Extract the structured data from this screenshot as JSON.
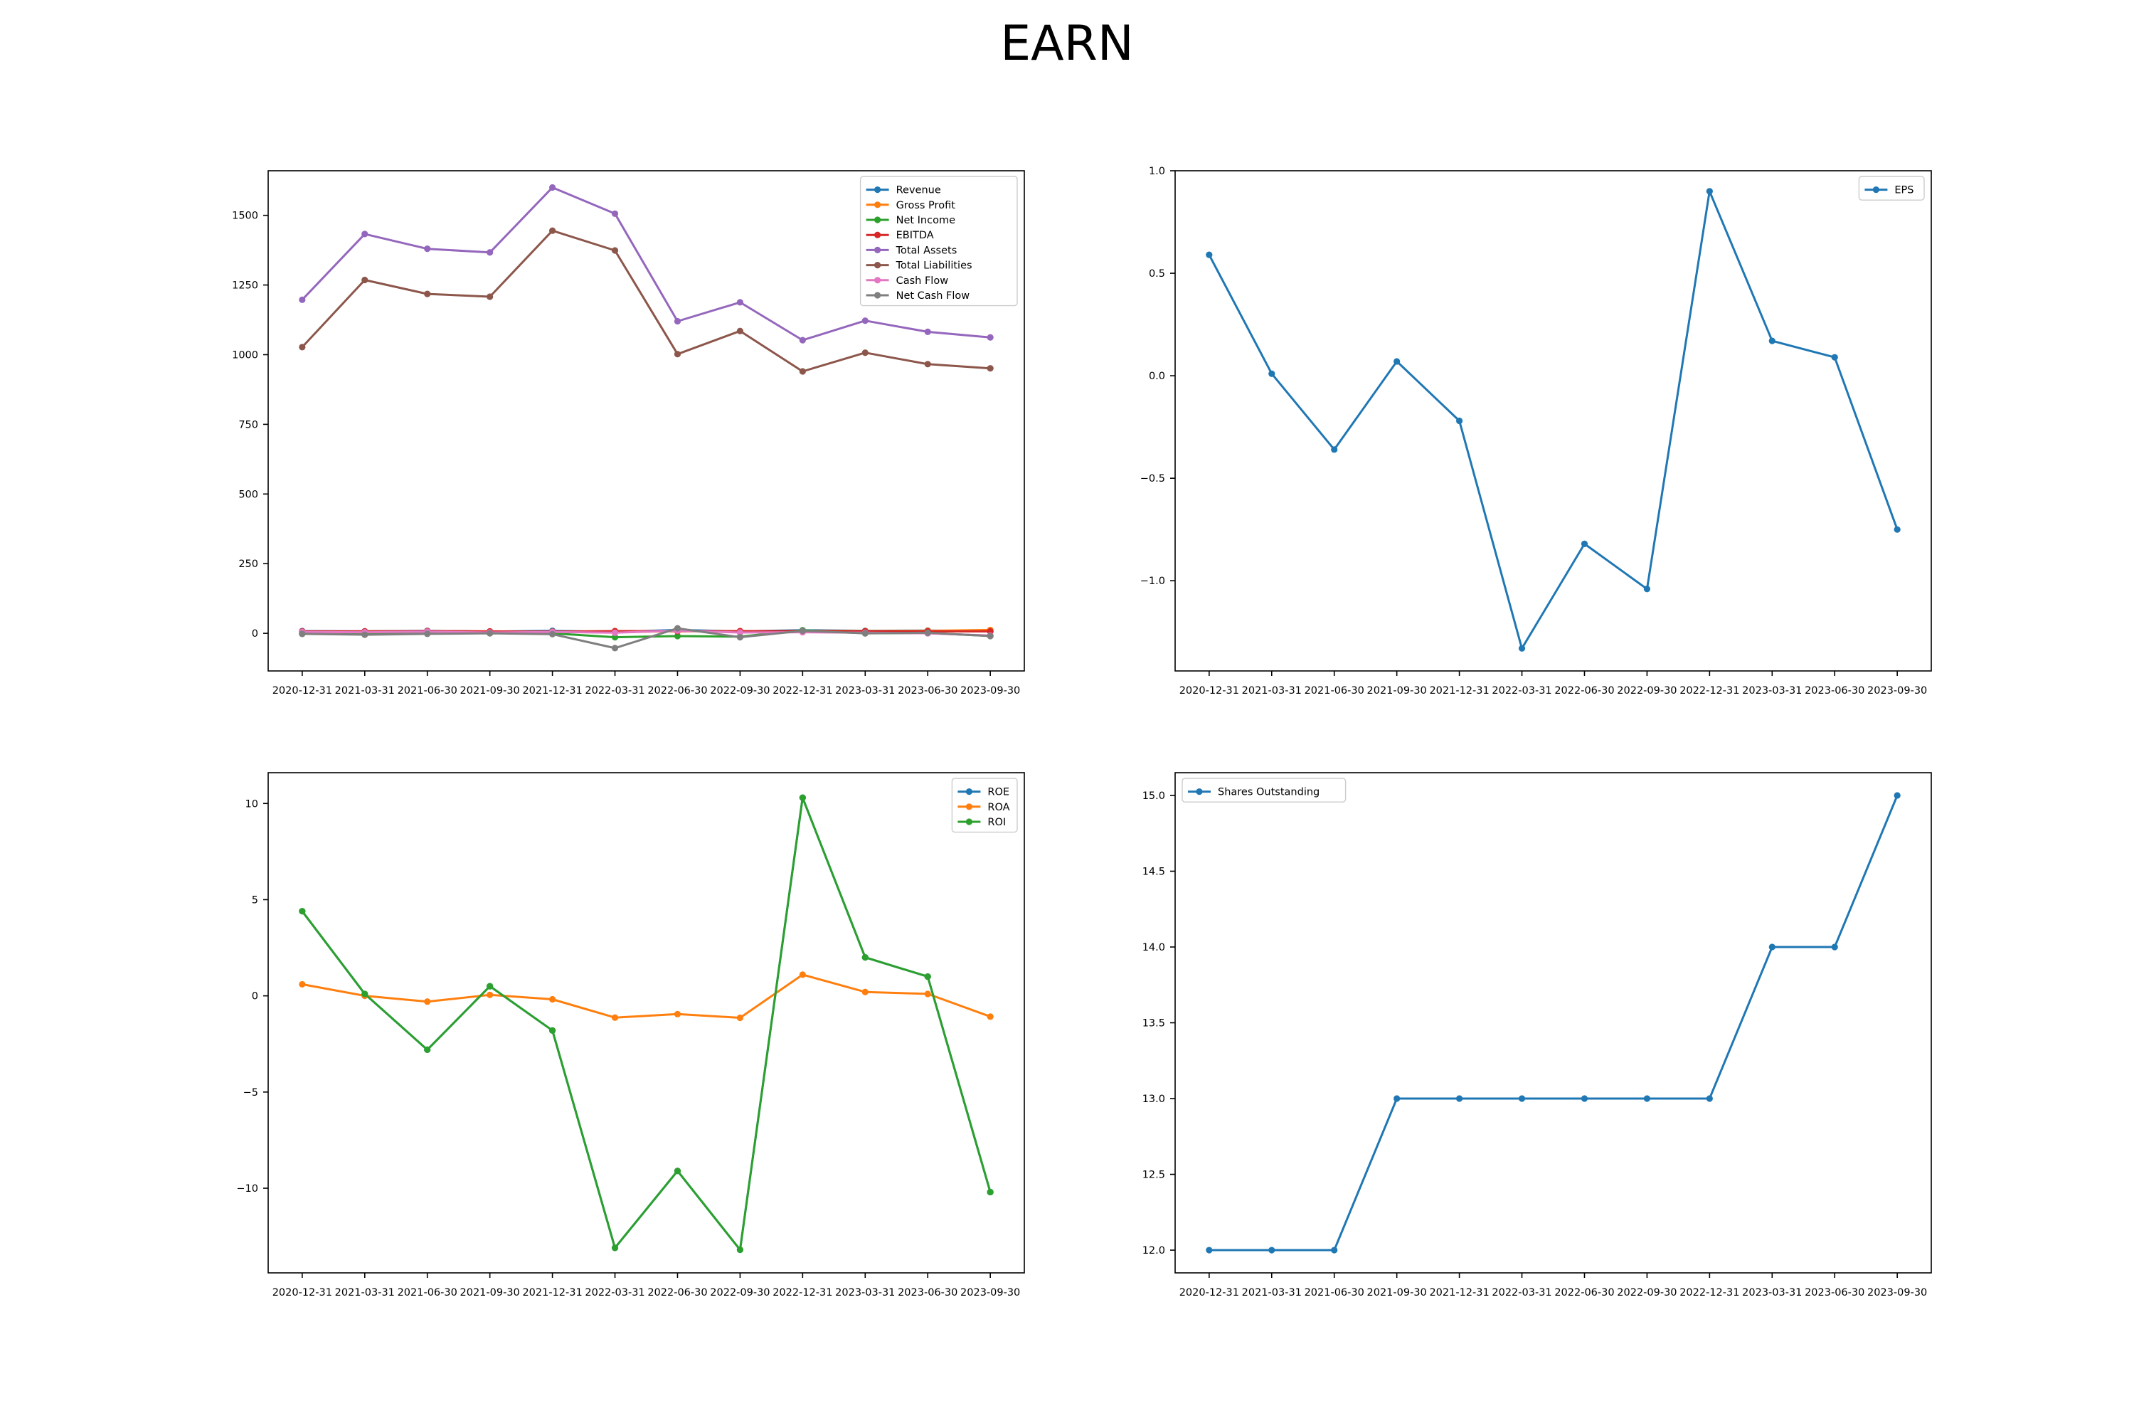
{
  "suptitle": "EARN",
  "chart_data": [
    {
      "type": "line",
      "x": [
        "2020-12-31",
        "2021-03-31",
        "2021-06-30",
        "2021-09-30",
        "2021-12-31",
        "2022-03-31",
        "2022-06-30",
        "2022-09-30",
        "2022-12-31",
        "2023-03-31",
        "2023-06-30",
        "2023-09-30"
      ],
      "ylim": [
        -135,
        1660
      ],
      "yticks": [
        0,
        250,
        500,
        750,
        1000,
        1250,
        1500
      ],
      "yticklabels": [
        "0",
        "250",
        "500",
        "750",
        "1000",
        "1250",
        "1500"
      ],
      "legend_loc": "upper right",
      "series": [
        {
          "name": "Revenue",
          "color": "#1f77b4",
          "values": [
            8,
            7,
            9,
            6,
            9,
            5,
            12,
            7,
            11,
            9,
            10,
            8
          ]
        },
        {
          "name": "Gross Profit",
          "color": "#ff7f0e",
          "values": [
            6,
            5,
            7,
            5,
            6,
            4,
            8,
            6,
            9,
            8,
            9,
            12
          ]
        },
        {
          "name": "Net Income",
          "color": "#2ca02c",
          "values": [
            -2,
            -3,
            0,
            1,
            0,
            -14,
            -10,
            -12,
            11,
            0,
            1,
            -9
          ]
        },
        {
          "name": "EBITDA",
          "color": "#d62728",
          "values": [
            7,
            7,
            8,
            7,
            6,
            8,
            8,
            8,
            8,
            7,
            7,
            7
          ]
        },
        {
          "name": "Total Assets",
          "color": "#9467bd",
          "values": [
            1197,
            1433,
            1380,
            1367,
            1600,
            1506,
            1120,
            1188,
            1052,
            1122,
            1082,
            1062
          ]
        },
        {
          "name": "Total Liabilities",
          "color": "#8c564b",
          "values": [
            1027,
            1268,
            1218,
            1208,
            1445,
            1374,
            1002,
            1085,
            940,
            1007,
            966,
            951
          ]
        },
        {
          "name": "Cash Flow",
          "color": "#e377c2",
          "values": [
            5,
            4,
            6,
            3,
            5,
            2,
            10,
            3,
            4,
            2,
            0,
            -8
          ]
        },
        {
          "name": "Net Cash Flow",
          "color": "#7f7f7f",
          "values": [
            -2,
            -5,
            -2,
            0,
            -3,
            -53,
            18,
            -14,
            9,
            0,
            2,
            -10
          ]
        }
      ]
    },
    {
      "type": "line",
      "x": [
        "2020-12-31",
        "2021-03-31",
        "2021-06-30",
        "2021-09-30",
        "2021-12-31",
        "2022-03-31",
        "2022-06-30",
        "2022-09-30",
        "2022-12-31",
        "2023-03-31",
        "2023-06-30",
        "2023-09-30"
      ],
      "ylim": [
        -1.44,
        1.0
      ],
      "yticks": [
        -1.0,
        -0.5,
        0.0,
        0.5,
        1.0
      ],
      "yticklabels": [
        "−1.0",
        "−0.5",
        "0.0",
        "0.5",
        "1.0"
      ],
      "legend_loc": "upper right",
      "series": [
        {
          "name": "EPS",
          "color": "#1f77b4",
          "values": [
            0.59,
            0.01,
            -0.36,
            0.07,
            -0.22,
            -1.33,
            -0.82,
            -1.04,
            0.9,
            0.17,
            0.09,
            -0.75
          ]
        }
      ]
    },
    {
      "type": "line",
      "x": [
        "2020-12-31",
        "2021-03-31",
        "2021-06-30",
        "2021-09-30",
        "2021-12-31",
        "2022-03-31",
        "2022-06-30",
        "2022-09-30",
        "2022-12-31",
        "2023-03-31",
        "2023-06-30",
        "2023-09-30"
      ],
      "ylim": [
        -14.4,
        11.6
      ],
      "yticks": [
        -10,
        -5,
        0,
        5,
        10
      ],
      "yticklabels": [
        "−10",
        "−5",
        "0",
        "5",
        "10"
      ],
      "legend_loc": "upper right",
      "series": [
        {
          "name": "ROE",
          "color": "#1f77b4",
          "values": [
            4.4,
            0.1,
            -2.8,
            0.5,
            -1.8,
            -13.1,
            -9.1,
            -13.2,
            10.3,
            2.0,
            1.0,
            -10.2
          ]
        },
        {
          "name": "ROA",
          "color": "#ff7f0e",
          "values": [
            0.6,
            0.0,
            -0.3,
            0.05,
            -0.18,
            -1.13,
            -0.95,
            -1.14,
            1.1,
            0.2,
            0.1,
            -1.08
          ]
        },
        {
          "name": "ROI",
          "color": "#2ca02c",
          "values": [
            4.4,
            0.1,
            -2.8,
            0.5,
            -1.8,
            -13.1,
            -9.1,
            -13.2,
            10.3,
            2.0,
            1.0,
            -10.2
          ]
        }
      ]
    },
    {
      "type": "line",
      "x": [
        "2020-12-31",
        "2021-03-31",
        "2021-06-30",
        "2021-09-30",
        "2021-12-31",
        "2022-03-31",
        "2022-06-30",
        "2022-09-30",
        "2022-12-31",
        "2023-03-31",
        "2023-06-30",
        "2023-09-30"
      ],
      "ylim": [
        11.85,
        15.15
      ],
      "yticks": [
        12.0,
        12.5,
        13.0,
        13.5,
        14.0,
        14.5,
        15.0
      ],
      "yticklabels": [
        "12.0",
        "12.5",
        "13.0",
        "13.5",
        "14.0",
        "14.5",
        "15.0"
      ],
      "legend_loc": "upper left",
      "series": [
        {
          "name": "Shares Outstanding",
          "color": "#1f77b4",
          "values": [
            12,
            12,
            12,
            13,
            13,
            13,
            13,
            13,
            13,
            14,
            14,
            15
          ]
        }
      ]
    }
  ]
}
